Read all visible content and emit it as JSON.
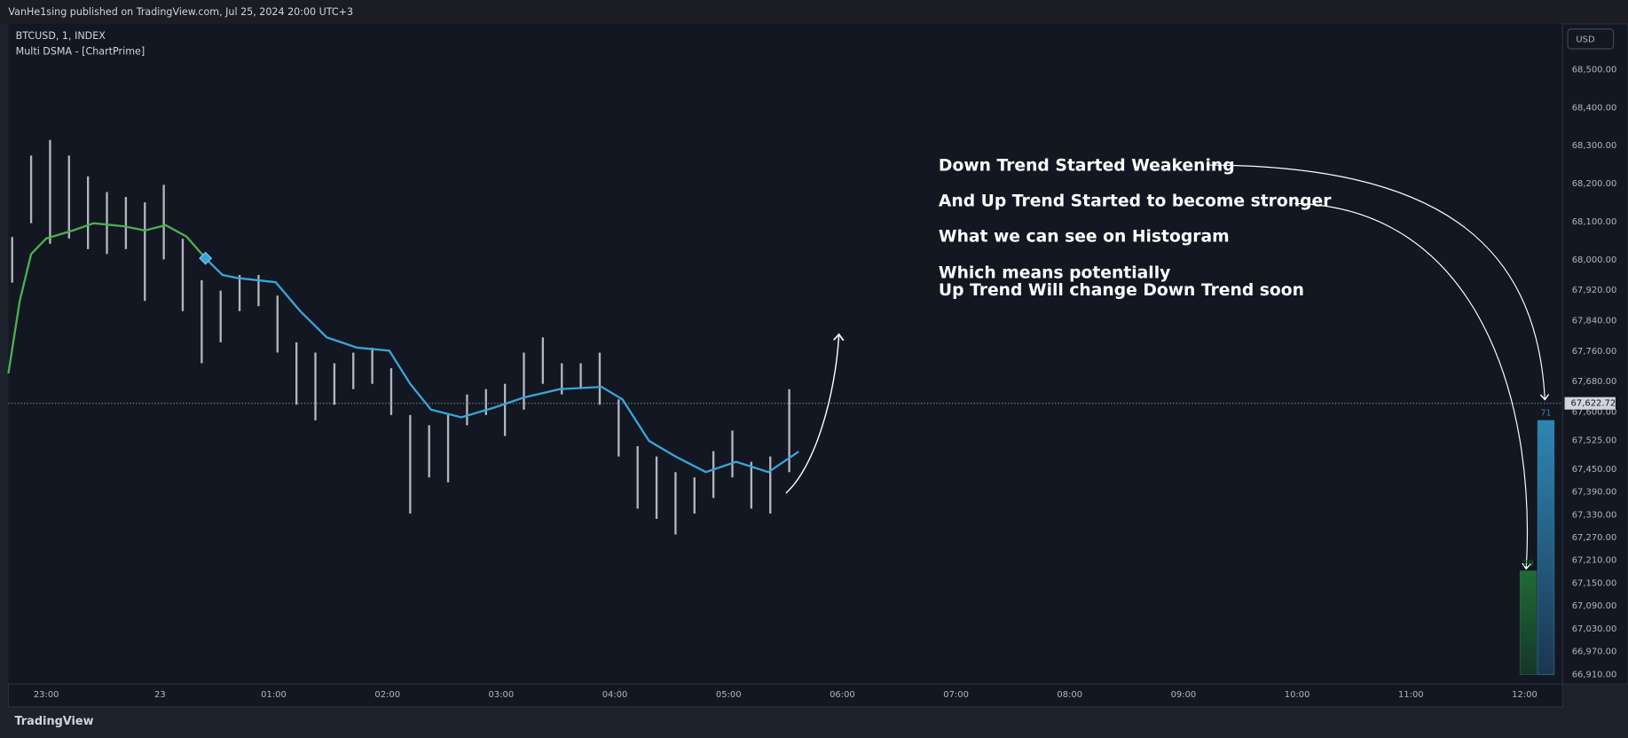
{
  "header": "VanHe1sing published on TradingView.com, Jul 25, 2024 20:00 UTC+3",
  "symbol": "BTCUSD, 1, INDEX",
  "indicator": "Multi DSMA - [ChartPrime]",
  "currency": "USD",
  "footer": "TradingView",
  "chart_data": {
    "type": "candlestick",
    "x": [
      1362,
      1372,
      1382,
      1392,
      1402,
      1412,
      1422,
      1432,
      1442,
      1452,
      1462,
      1472,
      1482,
      1492,
      1502,
      1512,
      1522,
      1532,
      1542,
      1552,
      1562,
      1572,
      1582,
      1592,
      1602,
      1612,
      1622,
      1632,
      1642,
      1652,
      1662,
      1672,
      1682,
      1692,
      1702,
      1712,
      1722,
      1732,
      1742,
      1752,
      1762,
      1772
    ],
    "high": [
      68060,
      68274,
      68315,
      68274,
      68219,
      68178,
      68165,
      68151,
      68197,
      68055,
      67946,
      67919,
      67960,
      67960,
      67906,
      67783,
      67756,
      67728,
      67756,
      67769,
      67715,
      67592,
      67565,
      67592,
      67646,
      67660,
      67674,
      67756,
      67796,
      67728,
      67728,
      67756,
      67633,
      67510,
      67483,
      67442,
      67428,
      67497,
      67551,
      67469,
      67483,
      67660
    ],
    "low": [
      67940,
      68096,
      68042,
      68056,
      68028,
      68015,
      68028,
      67892,
      68001,
      67865,
      67728,
      67783,
      67865,
      67878,
      67756,
      67619,
      67578,
      67619,
      67660,
      67674,
      67592,
      67333,
      67428,
      67415,
      67565,
      67592,
      67537,
      67606,
      67674,
      67646,
      67660,
      67619,
      67483,
      67346,
      67319,
      67278,
      67333,
      67374,
      67428,
      67346,
      67333,
      67442
    ],
    "color": "#b2b5be",
    "series": [
      {
        "color": "#4caf50",
        "x": [
          1360,
          1366,
          1372,
          1380,
          1394,
          1405,
          1421,
          1432,
          1443,
          1454,
          1464
        ],
        "values": [
          67701,
          67892,
          68015,
          68056,
          68077,
          68096,
          68088,
          68077,
          68091,
          68061,
          68004
        ]
      },
      {
        "color": "#3ba3d8",
        "x": [
          1464,
          1473,
          1481,
          1501,
          1514,
          1528,
          1544,
          1561,
          1572,
          1583,
          1599,
          1616,
          1632,
          1651,
          1673,
          1684,
          1698,
          1712,
          1728,
          1744,
          1761,
          1777
        ],
        "values": [
          68004,
          67960,
          67952,
          67941,
          67865,
          67796,
          67769,
          67761,
          67674,
          67606,
          67586,
          67611,
          67638,
          67660,
          67666,
          67633,
          67524,
          67483,
          67442,
          67469,
          67442,
          67496
        ]
      }
    ],
    "last_price": {
      "value": 67622.72,
      "label": "67,622.72"
    },
    "histogram": {
      "values": [
        29,
        71
      ],
      "colors": [
        "#1f6b35",
        "#2e86b3"
      ]
    },
    "annotations": [
      "Down Trend Started Weakening",
      "And Up Trend Started to become stronger",
      "What we can see on Histogram",
      "Which means potentially",
      "Up Trend Will change Down Trend soon"
    ],
    "xlim": [
      1360,
      2180
    ],
    "xticks": [
      {
        "value": 1380,
        "label": "23:00"
      },
      {
        "value": 1440,
        "label": "23"
      },
      {
        "value": 1500,
        "label": "01:00"
      },
      {
        "value": 1560,
        "label": "02:00"
      },
      {
        "value": 1620,
        "label": "03:00"
      },
      {
        "value": 1680,
        "label": "04:00"
      },
      {
        "value": 1740,
        "label": "05:00"
      },
      {
        "value": 1800,
        "label": "06:00"
      },
      {
        "value": 1860,
        "label": "07:00"
      },
      {
        "value": 1920,
        "label": "08:00"
      },
      {
        "value": 1980,
        "label": "09:00"
      },
      {
        "value": 2040,
        "label": "10:00"
      },
      {
        "value": 2100,
        "label": "11:00"
      },
      {
        "value": 2160,
        "label": "12:00"
      }
    ],
    "ylim": [
      66885,
      68620
    ],
    "yticks": [
      {
        "value": 68500,
        "label": "68,500.00"
      },
      {
        "value": 68400,
        "label": "68,400.00"
      },
      {
        "value": 68300,
        "label": "68,300.00"
      },
      {
        "value": 68200,
        "label": "68,200.00"
      },
      {
        "value": 68100,
        "label": "68,100.00"
      },
      {
        "value": 68000,
        "label": "68,000.00"
      },
      {
        "value": 67920,
        "label": "67,920.00"
      },
      {
        "value": 67840,
        "label": "67,840.00"
      },
      {
        "value": 67760,
        "label": "67,760.00"
      },
      {
        "value": 67680,
        "label": "67,680.00"
      },
      {
        "value": 67600,
        "label": "67,600.00"
      },
      {
        "value": 67525,
        "label": "67,525.00"
      },
      {
        "value": 67450,
        "label": "67,450.00"
      },
      {
        "value": 67390,
        "label": "67,390.00"
      },
      {
        "value": 67330,
        "label": "67,330.00"
      },
      {
        "value": 67270,
        "label": "67,270.00"
      },
      {
        "value": 67210,
        "label": "67,210.00"
      },
      {
        "value": 67150,
        "label": "67,150.00"
      },
      {
        "value": 67090,
        "label": "67,090.00"
      },
      {
        "value": 67030,
        "label": "67,030.00"
      },
      {
        "value": 66970,
        "label": "66,970.00"
      },
      {
        "value": 66910,
        "label": "66,910.00"
      }
    ]
  }
}
